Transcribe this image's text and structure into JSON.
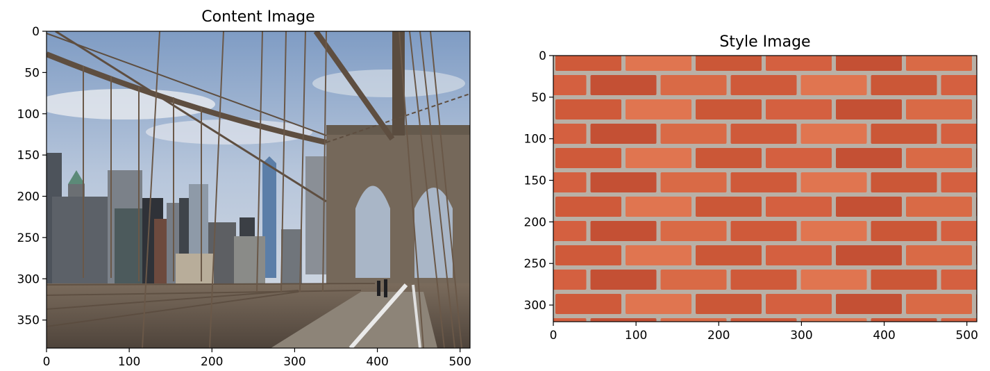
{
  "chart_data": [
    {
      "type": "image",
      "title": "Content Image",
      "xlabel": "",
      "ylabel": "",
      "xlim": [
        0,
        512
      ],
      "ylim": [
        384,
        0
      ],
      "xticks": [
        0,
        100,
        200,
        300,
        400,
        500
      ],
      "yticks": [
        0,
        50,
        100,
        150,
        200,
        250,
        300,
        350
      ],
      "xtick_labels": [
        "0",
        "100",
        "200",
        "300",
        "400",
        "500"
      ],
      "ytick_labels": [
        "0",
        "50",
        "100",
        "150",
        "200",
        "250",
        "300",
        "350"
      ],
      "image_content": "Brooklyn Bridge walkway with suspension cables, Manhattan skyline and stone tower under a cloudy blue sky",
      "colors": {
        "sky": "#9fb4d0",
        "stone": "#6f6252",
        "cable": "#5e4e40",
        "buildings": "#5a5f66",
        "deck": "#6b5f55"
      }
    },
    {
      "type": "image",
      "title": "Style Image",
      "xlabel": "",
      "ylabel": "",
      "xlim": [
        0,
        512
      ],
      "ylim": [
        320,
        0
      ],
      "xticks": [
        0,
        100,
        200,
        300,
        400,
        500
      ],
      "yticks": [
        0,
        50,
        100,
        150,
        200,
        250,
        300
      ],
      "xtick_labels": [
        "0",
        "100",
        "200",
        "300",
        "400",
        "500"
      ],
      "ytick_labels": [
        "0",
        "50",
        "100",
        "150",
        "200",
        "250",
        "300"
      ],
      "image_content": "Red brick wall with light grey mortar",
      "colors": {
        "brick": "#c8573a",
        "mortar": "#b9b0a6"
      }
    }
  ]
}
